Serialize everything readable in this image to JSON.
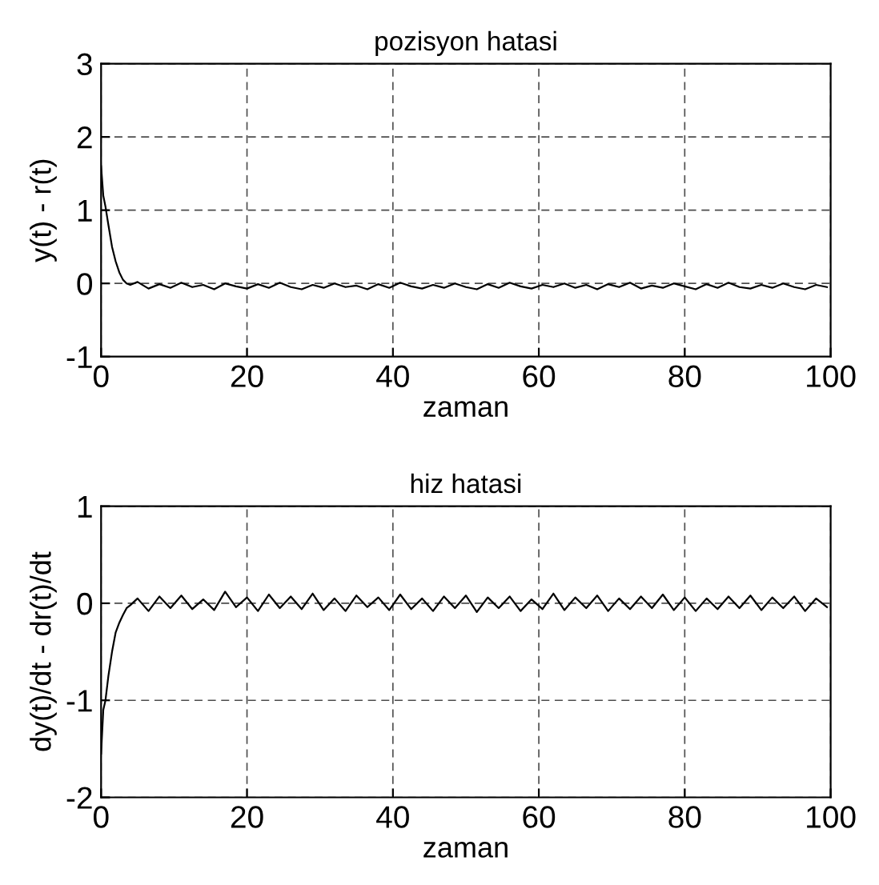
{
  "chart_data": [
    {
      "type": "line",
      "title": "pozisyon hatasi",
      "xlabel": "zaman",
      "ylabel": "y(t) - r(t)",
      "xlim": [
        0,
        100
      ],
      "ylim": [
        -1,
        3
      ],
      "xticks": [
        0,
        20,
        40,
        60,
        80,
        100
      ],
      "yticks": [
        -1,
        0,
        1,
        2,
        3
      ],
      "grid": true,
      "line_style": "solid",
      "marker": "none",
      "series": [
        {
          "color": "#000000",
          "x": [
            0,
            0.3,
            0.6,
            1,
            1.5,
            2,
            2.5,
            3,
            3.5,
            4,
            5,
            6.5,
            8,
            9.5,
            11,
            12.5,
            14,
            15.5,
            17,
            18.5,
            20,
            21.5,
            23,
            24.5,
            26,
            27.5,
            29,
            30.5,
            32,
            33.5,
            35,
            36.5,
            38,
            39.5,
            41,
            42.5,
            44,
            45.5,
            47,
            48.5,
            50,
            51.5,
            53,
            54.5,
            56,
            57.5,
            59,
            60.5,
            62,
            63.5,
            65,
            66.5,
            68,
            69.5,
            71,
            72.5,
            74,
            75.5,
            77,
            78.5,
            80,
            81.5,
            83,
            84.5,
            86,
            87.5,
            89,
            90.5,
            92,
            93.5,
            95,
            96.5,
            98,
            99.5
          ],
          "values": [
            1.6,
            1.2,
            1.05,
            0.8,
            0.5,
            0.3,
            0.15,
            0.05,
            0.0,
            -0.02,
            0.02,
            -0.07,
            -0.01,
            -0.06,
            0.01,
            -0.05,
            -0.02,
            -0.08,
            0.0,
            -0.04,
            -0.07,
            -0.01,
            -0.06,
            0.01,
            -0.05,
            -0.08,
            -0.02,
            -0.06,
            0.0,
            -0.05,
            -0.03,
            -0.08,
            -0.01,
            -0.06,
            0.01,
            -0.04,
            -0.07,
            -0.02,
            -0.06,
            0.0,
            -0.05,
            -0.08,
            -0.01,
            -0.06,
            0.01,
            -0.04,
            -0.07,
            -0.02,
            -0.05,
            0.0,
            -0.06,
            -0.02,
            -0.08,
            -0.01,
            -0.05,
            0.01,
            -0.07,
            -0.03,
            -0.06,
            0.0,
            -0.04,
            -0.08,
            -0.01,
            -0.06,
            0.01,
            -0.05,
            -0.07,
            -0.02,
            -0.06,
            0.0,
            -0.05,
            -0.08,
            -0.02,
            -0.05
          ]
        }
      ]
    },
    {
      "type": "line",
      "title": "hiz hatasi",
      "xlabel": "zaman",
      "ylabel": "dy(t)/dt - dr(t)/dt",
      "xlim": [
        0,
        100
      ],
      "ylim": [
        -2,
        1
      ],
      "xticks": [
        0,
        20,
        40,
        60,
        80,
        100
      ],
      "yticks": [
        -2,
        -1,
        0,
        1
      ],
      "grid": true,
      "line_style": "solid",
      "marker": "none",
      "series": [
        {
          "color": "#000000",
          "x": [
            0,
            0.3,
            0.6,
            1,
            1.5,
            2,
            2.5,
            3,
            3.5,
            4,
            5,
            6.5,
            8,
            9.5,
            11,
            12.5,
            14,
            15.5,
            17,
            18.5,
            20,
            21.5,
            23,
            24.5,
            26,
            27.5,
            29,
            30.5,
            32,
            33.5,
            35,
            36.5,
            38,
            39.5,
            41,
            42.5,
            44,
            45.5,
            47,
            48.5,
            50,
            51.5,
            53,
            54.5,
            56,
            57.5,
            59,
            60.5,
            62,
            63.5,
            65,
            66.5,
            68,
            69.5,
            71,
            72.5,
            74,
            75.5,
            77,
            78.5,
            80,
            81.5,
            83,
            84.5,
            86,
            87.5,
            89,
            90.5,
            92,
            93.5,
            95,
            96.5,
            98,
            99.5
          ],
          "values": [
            -1.55,
            -1.1,
            -1.0,
            -0.75,
            -0.5,
            -0.3,
            -0.2,
            -0.12,
            -0.05,
            -0.02,
            0.05,
            -0.08,
            0.07,
            -0.05,
            0.08,
            -0.06,
            0.04,
            -0.07,
            0.12,
            -0.04,
            0.06,
            -0.08,
            0.09,
            -0.05,
            0.07,
            -0.06,
            0.1,
            -0.07,
            0.05,
            -0.08,
            0.08,
            -0.04,
            0.06,
            -0.07,
            0.09,
            -0.06,
            0.05,
            -0.08,
            0.07,
            -0.05,
            0.08,
            -0.09,
            0.06,
            -0.05,
            0.07,
            -0.08,
            0.04,
            -0.06,
            0.1,
            -0.07,
            0.06,
            -0.05,
            0.08,
            -0.08,
            0.05,
            -0.06,
            0.07,
            -0.05,
            0.09,
            -0.07,
            0.06,
            -0.08,
            0.05,
            -0.06,
            0.07,
            -0.05,
            0.08,
            -0.07,
            0.06,
            -0.05,
            0.07,
            -0.08,
            0.05,
            -0.04
          ]
        }
      ]
    }
  ]
}
